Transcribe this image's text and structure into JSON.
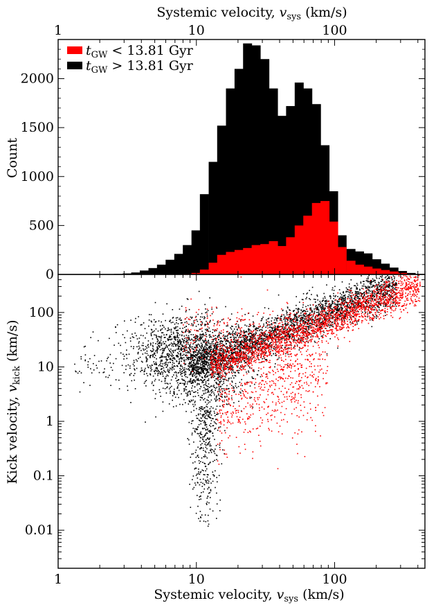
{
  "chart_data": [
    {
      "type": "bar",
      "panel": "top",
      "xlabel_top": "Systemic velocity, v_sys (km/s)",
      "ylabel": "Count",
      "x_scale": "log",
      "xlim": [
        1,
        450
      ],
      "ylim": [
        0,
        2400
      ],
      "x_ticks": [
        "1",
        "10",
        "100"
      ],
      "y_ticks": [
        "0",
        "500",
        "1000",
        "1500",
        "2000"
      ],
      "bin_centers": [
        2.05,
        2.37,
        2.73,
        3.15,
        3.63,
        4.19,
        4.84,
        5.58,
        6.44,
        7.44,
        8.58,
        9.91,
        11.4,
        13.2,
        15.2,
        17.6,
        20.3,
        23.4,
        27.0,
        31.2,
        36.0,
        41.5,
        47.9,
        55.3,
        63.8,
        73.7,
        85.0,
        98.1,
        113,
        131,
        151,
        174,
        201,
        232,
        268,
        309,
        357,
        412
      ],
      "series": [
        {
          "name": "t_GW > 13.81 Gyr",
          "color": "#000000",
          "values": [
            2,
            3,
            5,
            10,
            20,
            40,
            65,
            100,
            150,
            210,
            300,
            450,
            820,
            1150,
            1520,
            1900,
            2100,
            2360,
            2340,
            2200,
            1900,
            1620,
            1720,
            1960,
            1900,
            1740,
            1320,
            850,
            400,
            260,
            235,
            215,
            155,
            110,
            70,
            35,
            15,
            5
          ]
        },
        {
          "name": "t_GW < 13.81 Gyr",
          "color": "#ff0000",
          "values": [
            0,
            0,
            0,
            0,
            0,
            0,
            0,
            0,
            1,
            2,
            5,
            15,
            50,
            120,
            200,
            230,
            250,
            270,
            300,
            310,
            340,
            290,
            380,
            500,
            600,
            730,
            750,
            540,
            280,
            140,
            100,
            80,
            60,
            45,
            30,
            15,
            5,
            2
          ]
        }
      ],
      "legend": {
        "placement": "top-left"
      }
    },
    {
      "type": "scatter",
      "panel": "bottom",
      "xlabel": "Systemic velocity, v_sys (km/s)",
      "ylabel": "Kick velocity, v_kick (km/s)",
      "x_scale": "log",
      "y_scale": "log",
      "xlim": [
        1,
        450
      ],
      "ylim": [
        0.002,
        500
      ],
      "x_ticks": [
        "1",
        "10",
        "100"
      ],
      "y_ticks": [
        "0.01",
        "0.1",
        "1",
        "10",
        "100"
      ],
      "series": [
        {
          "name": "t_GW > 13.81 Gyr",
          "color": "#000000"
        },
        {
          "name": "t_GW < 13.81 Gyr",
          "color": "#ff0000"
        }
      ]
    }
  ],
  "legend": {
    "red_label_sub": "GW",
    "red_label_rest": " < 13.81 Gyr",
    "black_label_sub": "GW",
    "black_label_rest": " > 13.81 Gyr",
    "t": "t"
  },
  "axes": {
    "top_xlabel_main": "Systemic velocity, ",
    "top_xlabel_var": "v",
    "top_xlabel_sub": "sys",
    "top_xlabel_unit": " (km/s)",
    "bottom_xlabel_main": "Systemic velocity, ",
    "bottom_xlabel_var": "v",
    "bottom_xlabel_sub": "sys",
    "bottom_xlabel_unit": " (km/s)",
    "count_label": "Count",
    "kick_label_main": "Kick velocity, ",
    "kick_label_var": "v",
    "kick_label_sub": "kick",
    "kick_label_unit": " (km/s)"
  }
}
